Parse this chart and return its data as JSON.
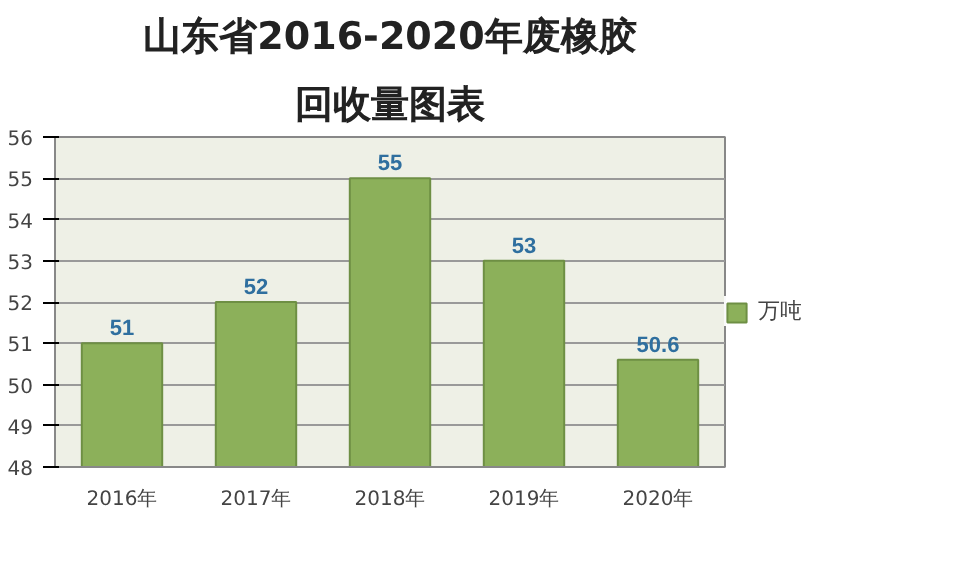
{
  "chart_data": {
    "type": "bar",
    "title": "山东省2016-2020年废橡胶",
    "subtitle": "回收量图表",
    "categories": [
      "2016年",
      "2017年",
      "2018年",
      "2019年",
      "2020年"
    ],
    "series": [
      {
        "name": "万吨",
        "color": "#8cb05a",
        "values": [
          51,
          52,
          55,
          53,
          50.6
        ]
      }
    ],
    "ylim": [
      48,
      56
    ],
    "yticks": [
      48,
      49,
      50,
      51,
      52,
      53,
      54,
      55,
      56
    ],
    "grid": "y",
    "legend": "right",
    "data_labels": true
  }
}
